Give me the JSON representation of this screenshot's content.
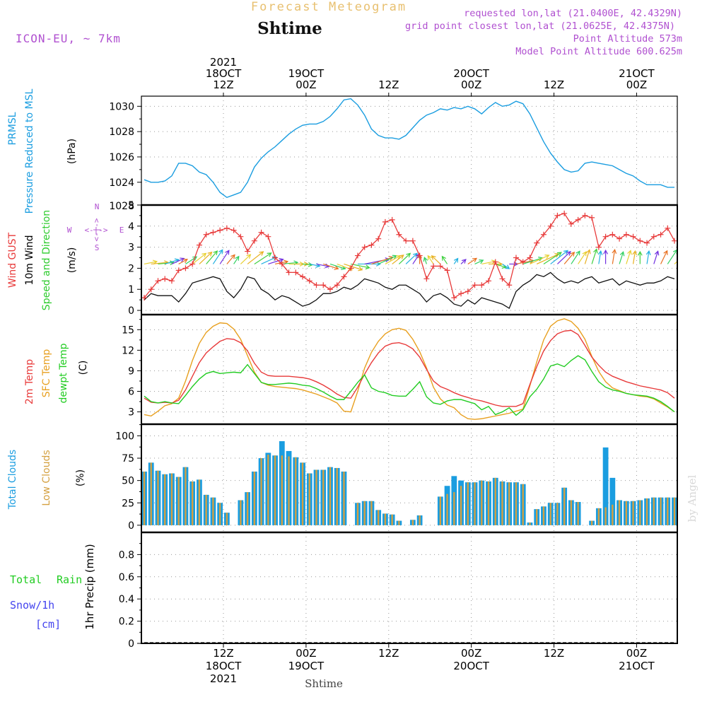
{
  "header": {
    "product": "Forecast Meteogram",
    "location": "Shtime",
    "model": "ICON-EU, ~ 7km",
    "requested": "requested lon,lat (21.0400E, 42.4329N)",
    "gridpoint": "grid point closest lon,lat (21.0625E, 42.4375N)",
    "point_alt": "Point Altitude 573m",
    "model_alt": "Model Point Altitude 600.625m",
    "watermark": "by Angel",
    "footer_location": "Shtime"
  },
  "colors": {
    "pressure": "#1a9de0",
    "gust": "#e83a3a",
    "wind": "#111111",
    "wind_dir": "#2ecc2e",
    "temp": "#e83a3a",
    "sfc": "#e8a020",
    "dew": "#22cc22",
    "total_cloud": "#1a9de0",
    "low_cloud": "#d4a040",
    "rain": "#22cc22",
    "snow": "#4444ee",
    "label_purple": "#b050d0",
    "title_orange": "#e8c070"
  },
  "time_axis": {
    "x_index_range": [
      0,
      77
    ],
    "top_ticks": [
      {
        "x": 11.5,
        "l1": "2021",
        "l2": "18OCT",
        "l3": "12Z"
      },
      {
        "x": 23.5,
        "l1": "",
        "l2": "19OCT",
        "l3": "00Z"
      },
      {
        "x": 35.5,
        "l1": "",
        "l2": "",
        "l3": "12Z"
      },
      {
        "x": 47.5,
        "l1": "",
        "l2": "20OCT",
        "l3": "00Z"
      },
      {
        "x": 59.5,
        "l1": "",
        "l2": "",
        "l3": "12Z"
      },
      {
        "x": 71.5,
        "l1": "",
        "l2": "21OCT",
        "l3": "00Z"
      }
    ],
    "bottom_ticks": [
      {
        "x": 11.5,
        "l1": "12Z",
        "l2": "18OCT",
        "l3": "2021"
      },
      {
        "x": 23.5,
        "l1": "00Z",
        "l2": "19OCT",
        "l3": ""
      },
      {
        "x": 35.5,
        "l1": "12Z",
        "l2": "",
        "l3": ""
      },
      {
        "x": 47.5,
        "l1": "00Z",
        "l2": "20OCT",
        "l3": ""
      },
      {
        "x": 59.5,
        "l1": "12Z",
        "l2": "",
        "l3": ""
      },
      {
        "x": 71.5,
        "l1": "00Z",
        "l2": "21OCT",
        "l3": ""
      }
    ]
  },
  "chart_data": [
    {
      "type": "line",
      "id": "pressure",
      "title": "PRMSL Pressure Reduced to MSL",
      "label_lines": [
        "PRMSL",
        "Pressure Reduced to MSL"
      ],
      "ylabel": "(hPa)",
      "ylim": [
        1022.2,
        1030.8
      ],
      "yticks": [
        1024,
        1026,
        1028,
        1030
      ],
      "ytick_labels": [
        "1024",
        "1026",
        "1028",
        "1030"
      ],
      "clipped_tick_label": "1028",
      "series": [
        {
          "name": "PRMSL",
          "values": [
            1024.2,
            1024.0,
            1024.0,
            1024.1,
            1024.5,
            1025.5,
            1025.5,
            1025.3,
            1024.8,
            1024.6,
            1024.0,
            1023.2,
            1022.8,
            1023.0,
            1023.2,
            1024.0,
            1025.2,
            1025.9,
            1026.4,
            1026.8,
            1027.3,
            1027.8,
            1028.2,
            1028.5,
            1028.6,
            1028.6,
            1028.8,
            1029.2,
            1029.8,
            1030.5,
            1030.6,
            1030.1,
            1029.3,
            1028.2,
            1027.7,
            1027.5,
            1027.5,
            1027.4,
            1027.7,
            1028.3,
            1028.9,
            1029.3,
            1029.5,
            1029.8,
            1029.7,
            1029.9,
            1029.8,
            1030.0,
            1029.8,
            1029.4,
            1029.9,
            1030.3,
            1030.0,
            1030.1,
            1030.4,
            1030.2,
            1029.4,
            1028.3,
            1027.2,
            1026.3,
            1025.6,
            1025.0,
            1024.8,
            1024.9,
            1025.5,
            1025.6,
            1025.5,
            1025.4,
            1025.3,
            1025.0,
            1024.7,
            1024.5,
            1024.1,
            1023.8,
            1023.8,
            1023.8,
            1023.6,
            1023.6
          ]
        }
      ]
    },
    {
      "type": "line",
      "id": "wind",
      "title": "Wind GUST / 10m Wind Speed and Direction",
      "label_lines": [
        "Wind GUST",
        "10m Wind",
        "Speed and Direction"
      ],
      "ylabel": "(m/s)",
      "ylim": [
        -0.2,
        5.0
      ],
      "yticks": [
        0,
        1,
        2,
        3,
        4,
        5
      ],
      "ytick_labels": [
        "0",
        "1",
        "2",
        "3",
        "4",
        "5"
      ],
      "compass": {
        "n": "N",
        "s": "S",
        "e": "E",
        "w": "W",
        "arrow": "<-|->"
      },
      "series": [
        {
          "name": "Wind GUST",
          "marker": "+",
          "values": [
            0.6,
            1.0,
            1.4,
            1.5,
            1.4,
            1.9,
            2.0,
            2.2,
            3.1,
            3.6,
            3.7,
            3.8,
            3.9,
            3.8,
            3.5,
            2.8,
            3.3,
            3.7,
            3.5,
            2.5,
            2.2,
            1.8,
            1.8,
            1.6,
            1.4,
            1.2,
            1.2,
            1.0,
            1.2,
            1.6,
            2.0,
            2.6,
            3.0,
            3.1,
            3.4,
            4.2,
            4.3,
            3.6,
            3.3,
            3.3,
            2.6,
            1.5,
            2.1,
            2.1,
            1.9,
            0.6,
            0.8,
            0.9,
            1.2,
            1.2,
            1.4,
            2.3,
            1.5,
            1.2,
            2.5,
            2.3,
            2.5,
            3.2,
            3.6,
            4.0,
            4.5,
            4.6,
            4.1,
            4.3,
            4.5,
            4.4,
            3.0,
            3.5,
            3.6,
            3.4,
            3.6,
            3.5,
            3.3,
            3.2,
            3.5,
            3.6,
            3.9,
            3.3
          ]
        },
        {
          "name": "10m Wind",
          "values": [
            0.5,
            0.8,
            0.7,
            0.7,
            0.7,
            0.4,
            0.8,
            1.3,
            1.4,
            1.5,
            1.6,
            1.5,
            0.9,
            0.6,
            1.0,
            1.6,
            1.5,
            1.0,
            0.8,
            0.5,
            0.7,
            0.6,
            0.4,
            0.2,
            0.3,
            0.5,
            0.8,
            0.8,
            0.9,
            1.1,
            1.0,
            1.2,
            1.5,
            1.4,
            1.3,
            1.1,
            1.0,
            1.2,
            1.2,
            1.0,
            0.8,
            0.4,
            0.7,
            0.8,
            0.6,
            0.3,
            0.2,
            0.5,
            0.3,
            0.6,
            0.5,
            0.4,
            0.3,
            0.1,
            0.9,
            1.2,
            1.4,
            1.7,
            1.6,
            1.8,
            1.5,
            1.3,
            1.4,
            1.3,
            1.5,
            1.6,
            1.3,
            1.4,
            1.5,
            1.2,
            1.4,
            1.3,
            1.2,
            1.3,
            1.3,
            1.4,
            1.6,
            1.5
          ]
        }
      ],
      "direction_arrows_deg": [
        250,
        260,
        260,
        240,
        230,
        225,
        220,
        215,
        210,
        205,
        200,
        200,
        205,
        200,
        210,
        215,
        220,
        230,
        240,
        250,
        260,
        270,
        270,
        280,
        290,
        290,
        300,
        300,
        305,
        300,
        290,
        270,
        250,
        240,
        230,
        225,
        215,
        210,
        210,
        200,
        180,
        170,
        160,
        150,
        160,
        200,
        210,
        220,
        230,
        250,
        270,
        300,
        320,
        270,
        250,
        240,
        230,
        230,
        220,
        215,
        210,
        205,
        200,
        200,
        190,
        190,
        185,
        180,
        185,
        190,
        190,
        185,
        180,
        185,
        190,
        195,
        200,
        210
      ]
    },
    {
      "type": "line",
      "id": "temperature",
      "title": "2m Temp / SFC Temp / dewpt Temp",
      "label_lines": [
        "2m Temp",
        "SFC Temp",
        "dewpt Temp"
      ],
      "ylabel": "(C)",
      "ylim": [
        1.2,
        17.2
      ],
      "yticks": [
        3,
        6,
        9,
        12,
        15
      ],
      "ytick_labels": [
        "3",
        "6",
        "9",
        "12",
        "15"
      ],
      "series": [
        {
          "name": "2m Temp",
          "values": [
            5.0,
            4.4,
            4.3,
            4.4,
            4.3,
            4.7,
            6.2,
            8.2,
            10.2,
            11.6,
            12.5,
            13.3,
            13.7,
            13.6,
            13.1,
            11.9,
            10.1,
            8.8,
            8.3,
            8.2,
            8.2,
            8.2,
            8.1,
            8.0,
            7.8,
            7.4,
            6.9,
            6.3,
            5.6,
            5.1,
            5.0,
            6.6,
            8.5,
            10.2,
            11.6,
            12.6,
            13.0,
            13.1,
            12.8,
            12.2,
            11.0,
            9.2,
            7.5,
            6.7,
            6.3,
            5.8,
            5.4,
            5.1,
            4.8,
            4.6,
            4.3,
            4.0,
            3.8,
            3.8,
            3.8,
            4.2,
            7.0,
            9.6,
            11.9,
            13.4,
            14.4,
            14.8,
            14.9,
            14.3,
            12.7,
            11.0,
            9.8,
            8.8,
            8.2,
            7.8,
            7.4,
            7.1,
            6.8,
            6.6,
            6.4,
            6.2,
            5.8,
            5.0
          ]
        },
        {
          "name": "SFC Temp",
          "values": [
            2.6,
            2.4,
            3.1,
            3.9,
            4.2,
            5.0,
            7.5,
            10.5,
            13.0,
            14.6,
            15.5,
            16.0,
            15.9,
            15.1,
            13.6,
            11.2,
            8.8,
            7.3,
            6.9,
            6.7,
            6.6,
            6.5,
            6.4,
            6.2,
            5.9,
            5.6,
            5.2,
            4.8,
            4.3,
            3.1,
            3.0,
            6.0,
            9.4,
            11.7,
            13.3,
            14.4,
            15.0,
            15.2,
            14.9,
            13.6,
            11.8,
            9.4,
            6.6,
            4.9,
            4.0,
            3.6,
            2.6,
            2.0,
            1.9,
            2.0,
            2.2,
            2.4,
            2.6,
            2.8,
            3.1,
            3.4,
            6.8,
            10.3,
            13.5,
            15.5,
            16.3,
            16.6,
            16.2,
            15.2,
            13.6,
            11.1,
            8.9,
            7.4,
            6.5,
            6.1,
            5.7,
            5.5,
            5.3,
            5.2,
            4.9,
            4.3,
            3.7,
            3.0
          ]
        },
        {
          "name": "dewpt Temp",
          "values": [
            5.3,
            4.5,
            4.3,
            4.5,
            4.3,
            4.2,
            5.4,
            6.7,
            7.8,
            8.6,
            8.9,
            8.6,
            8.7,
            8.8,
            8.7,
            9.9,
            8.6,
            7.3,
            7.0,
            7.0,
            7.1,
            7.2,
            7.1,
            6.9,
            6.8,
            6.4,
            5.9,
            5.3,
            4.8,
            4.8,
            6.0,
            7.3,
            8.4,
            6.5,
            6.0,
            5.8,
            5.4,
            5.3,
            5.3,
            6.3,
            7.4,
            5.2,
            4.3,
            4.1,
            4.6,
            4.8,
            4.8,
            4.5,
            4.2,
            3.3,
            3.8,
            2.6,
            3.0,
            3.6,
            2.5,
            3.3,
            5.2,
            6.3,
            7.8,
            9.7,
            10.0,
            9.6,
            10.5,
            11.2,
            10.6,
            8.9,
            7.4,
            6.6,
            6.2,
            6.0,
            5.7,
            5.5,
            5.4,
            5.3,
            5.0,
            4.5,
            3.8,
            3.0
          ]
        }
      ]
    },
    {
      "type": "bar",
      "id": "clouds",
      "title": "Total Clouds / Low Clouds",
      "label_lines": [
        "Total Clouds",
        "Low Clouds"
      ],
      "ylabel": "(%)",
      "ylim": [
        -8,
        113
      ],
      "yticks": [
        0,
        25,
        50,
        75,
        100
      ],
      "ytick_labels": [
        "0",
        "25",
        "50",
        "75",
        "100"
      ],
      "series": [
        {
          "name": "Total Clouds",
          "values": [
            60,
            70,
            61,
            57,
            58,
            54,
            65,
            49,
            51,
            34,
            31,
            25,
            14,
            0,
            28,
            37,
            60,
            75,
            81,
            78,
            94,
            83,
            76,
            70,
            58,
            62,
            62,
            65,
            64,
            60,
            0,
            25,
            27,
            27,
            17,
            13,
            12,
            5,
            0,
            6,
            11,
            0,
            0,
            32,
            44,
            55,
            50,
            48,
            48,
            50,
            49,
            53,
            49,
            48,
            48,
            46,
            3,
            18,
            21,
            25,
            25,
            42,
            28,
            26,
            0,
            5,
            19,
            87,
            53,
            28,
            27,
            27,
            28,
            30,
            31,
            31,
            31,
            31
          ]
        },
        {
          "name": "Low Clouds",
          "values": [
            60,
            70,
            61,
            57,
            58,
            54,
            65,
            49,
            51,
            34,
            31,
            25,
            14,
            0,
            28,
            37,
            60,
            75,
            79,
            78,
            78,
            77,
            76,
            70,
            58,
            62,
            62,
            65,
            64,
            60,
            0,
            25,
            27,
            27,
            17,
            13,
            12,
            5,
            0,
            6,
            11,
            0,
            0,
            32,
            35,
            37,
            44,
            48,
            48,
            50,
            49,
            53,
            49,
            48,
            48,
            46,
            3,
            18,
            21,
            25,
            25,
            42,
            28,
            26,
            0,
            5,
            19,
            20,
            23,
            28,
            27,
            27,
            28,
            30,
            31,
            31,
            31,
            31
          ]
        }
      ]
    },
    {
      "type": "bar",
      "id": "precip",
      "title": "1hr Precip",
      "label_lines": [
        "Total",
        "Rain",
        "Snow/1h",
        "[cm]"
      ],
      "ylabel": "1hr Precip (mm)",
      "ylim": [
        0,
        1.0
      ],
      "yticks": [
        0,
        0.2,
        0.4,
        0.6,
        0.8
      ],
      "ytick_labels": [
        "0",
        "0.2",
        "0.4",
        "0.6",
        "0.8"
      ],
      "series": [
        {
          "name": "Total Rain",
          "values": [
            0,
            0,
            0,
            0,
            0,
            0,
            0,
            0,
            0,
            0,
            0,
            0,
            0,
            0,
            0,
            0,
            0,
            0,
            0,
            0,
            0,
            0,
            0,
            0,
            0,
            0,
            0,
            0,
            0,
            0,
            0,
            0,
            0,
            0,
            0,
            0,
            0,
            0,
            0,
            0,
            0,
            0,
            0,
            0,
            0,
            0,
            0,
            0,
            0,
            0,
            0,
            0,
            0,
            0,
            0,
            0,
            0,
            0,
            0,
            0,
            0,
            0,
            0,
            0,
            0,
            0,
            0,
            0,
            0,
            0,
            0,
            0,
            0,
            0,
            0,
            0,
            0,
            0
          ]
        },
        {
          "name": "Snow/1h",
          "values": [
            0,
            0,
            0,
            0,
            0,
            0,
            0,
            0,
            0,
            0,
            0,
            0,
            0,
            0,
            0,
            0,
            0,
            0,
            0,
            0,
            0,
            0,
            0,
            0,
            0,
            0,
            0,
            0,
            0,
            0,
            0,
            0,
            0,
            0,
            0,
            0,
            0,
            0,
            0,
            0,
            0,
            0,
            0,
            0,
            0,
            0,
            0,
            0,
            0,
            0,
            0,
            0,
            0,
            0,
            0,
            0,
            0,
            0,
            0,
            0,
            0,
            0,
            0,
            0,
            0,
            0,
            0,
            0,
            0,
            0,
            0,
            0,
            0,
            0,
            0,
            0,
            0,
            0
          ]
        }
      ]
    }
  ]
}
